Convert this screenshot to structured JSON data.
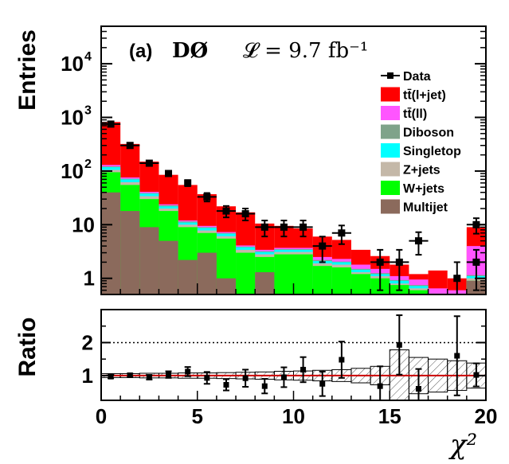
{
  "chart_data": {
    "type": "bar",
    "stacked": true,
    "panel_label": "(a)",
    "experiment": "DØ",
    "luminosity_text": "𝓛 = 9.7 fb⁻¹",
    "ylabel": "Entries",
    "xlabel": "χ²",
    "ratio_ylabel": "Ratio",
    "log_y": true,
    "xlim": [
      0,
      20
    ],
    "ylim": [
      0.5,
      50000
    ],
    "ratio_ylim": [
      0.25,
      3.0
    ],
    "bin_edges": [
      0,
      1,
      2,
      3,
      4,
      5,
      6,
      7,
      8,
      9,
      10,
      11,
      12,
      13,
      14,
      15,
      16,
      17,
      18,
      19,
      20
    ],
    "xticks": [
      "0",
      "5",
      "10",
      "15",
      "20"
    ],
    "yticks_main": [
      {
        "value": 1,
        "label": "1"
      },
      {
        "value": 10,
        "label": "10"
      },
      {
        "value": 100,
        "label": "10",
        "exp": "2"
      },
      {
        "value": 1000,
        "label": "10",
        "exp": "3"
      },
      {
        "value": 10000,
        "label": "10",
        "exp": "4"
      }
    ],
    "yticks_ratio": [
      {
        "value": 1,
        "label": "1"
      },
      {
        "value": 2,
        "label": "2"
      }
    ],
    "legend_position": "top-right",
    "legend": [
      {
        "name": "Data",
        "type": "marker",
        "color": "#000000"
      },
      {
        "name": "tt̄(l+jet)",
        "color": "#ff0000"
      },
      {
        "name": "tt̄(ll)",
        "color": "#ff55ff"
      },
      {
        "name": "Diboson",
        "color": "#7fa38a"
      },
      {
        "name": "Singletop",
        "color": "#00ffff"
      },
      {
        "name": "Z+jets",
        "color": "#c4b8a8"
      },
      {
        "name": "W+jets",
        "color": "#00ff00"
      },
      {
        "name": "Multijet",
        "color": "#8b6a5c"
      }
    ],
    "cumulative_stack": [
      {
        "name": "Multijet",
        "color": "#8b6a5c",
        "values": [
          40,
          18,
          9,
          5,
          2.2,
          3,
          1,
          0.3,
          1.3,
          0.3,
          0.3,
          0.3,
          0.3,
          0.3,
          0.3,
          0.3,
          0.3,
          0.3,
          0.3,
          0.9
        ]
      },
      {
        "name": "W+jets",
        "color": "#00ff00",
        "values": [
          95,
          55,
          30,
          18,
          9,
          7,
          5.5,
          3,
          2.5,
          2.8,
          2.8,
          1.7,
          1.6,
          1.2,
          1.0,
          0.75,
          0.6,
          0.4,
          0.4,
          0.9
        ]
      },
      {
        "name": "Z+jets",
        "color": "#c4b8a8",
        "values": [
          105,
          62,
          34,
          20,
          10,
          7.8,
          6.1,
          3.4,
          2.8,
          3.1,
          3.1,
          1.9,
          1.8,
          1.3,
          1.1,
          0.8,
          0.65,
          0.45,
          0.45,
          1.0
        ]
      },
      {
        "name": "Singletop",
        "color": "#00ffff",
        "values": [
          118,
          70,
          38,
          22,
          11,
          8.7,
          6.8,
          3.8,
          3.1,
          3.4,
          3.4,
          2.1,
          2.0,
          1.45,
          1.2,
          0.9,
          0.72,
          0.5,
          0.5,
          1.1
        ]
      },
      {
        "name": "Diboson",
        "color": "#7fa38a",
        "values": [
          122,
          72,
          39,
          23,
          11.5,
          9,
          7,
          3.9,
          3.2,
          3.5,
          3.5,
          2.2,
          2.05,
          1.5,
          1.25,
          0.93,
          0.75,
          0.52,
          0.52,
          1.15
        ]
      },
      {
        "name": "tt̄(ll)",
        "color": "#ff55ff",
        "values": [
          130,
          76,
          41,
          24,
          12,
          9.5,
          7.3,
          4.1,
          3.4,
          3.7,
          3.7,
          2.5,
          2.3,
          1.8,
          1.5,
          1.1,
          0.95,
          0.65,
          0.6,
          4
        ]
      },
      {
        "name": "tt̄(l+jet)",
        "color": "#ff0000",
        "values": [
          820,
          320,
          150,
          85,
          55,
          37,
          22,
          17,
          10.5,
          9.5,
          8.5,
          6,
          5.2,
          3.4,
          2.6,
          1.8,
          1.2,
          1.4,
          1.0,
          9
        ]
      }
    ],
    "data_points": [
      750,
      300,
      140,
      90,
      60,
      33,
      18,
      16,
      9,
      9,
      9,
      4,
      7,
      2,
      2,
      5,
      1,
      2,
      10
    ],
    "data_points_bins": [
      0,
      1,
      2,
      3,
      4,
      5,
      6,
      7,
      8,
      9,
      10,
      11,
      12,
      14,
      15,
      16,
      18,
      19,
      19
    ],
    "data_x_error_bins": [
      1,
      1,
      1,
      0,
      0,
      1,
      1,
      1,
      1,
      1,
      1,
      1,
      1,
      1,
      1,
      1,
      0,
      1,
      1
    ],
    "data_errors_rel": [
      0.04,
      0.06,
      0.09,
      0.1,
      0.13,
      0.18,
      0.24,
      0.25,
      0.33,
      0.33,
      0.33,
      0.5,
      0.38,
      0.7,
      0.7,
      0.45,
      1.0,
      0.7,
      0.32
    ],
    "ratio": {
      "x_centers": [
        0.5,
        1.5,
        2.5,
        3.5,
        4.5,
        5.5,
        6.5,
        7.5,
        8.5,
        9.5,
        10.5,
        11.5,
        12.5,
        14.5,
        15.5,
        16.5,
        18.5,
        19.5
      ],
      "values": [
        0.97,
        1.01,
        0.95,
        1.03,
        1.12,
        0.93,
        0.72,
        0.92,
        0.68,
        0.95,
        1.18,
        0.75,
        1.48,
        0.68,
        1.93,
        0.6,
        1.6,
        1.02
      ],
      "errors": [
        0.05,
        0.05,
        0.07,
        0.1,
        0.14,
        0.18,
        0.17,
        0.26,
        0.22,
        0.3,
        0.38,
        0.37,
        0.55,
        0.6,
        0.9,
        0.6,
        1.2,
        0.35
      ],
      "band_halfwidth": [
        0.06,
        0.06,
        0.07,
        0.07,
        0.08,
        0.08,
        0.09,
        0.1,
        0.11,
        0.13,
        0.14,
        0.16,
        0.18,
        0.22,
        0.28,
        0.78,
        0.55,
        0.5,
        0.45,
        0.38
      ],
      "reference_lines": [
        1,
        2
      ]
    }
  }
}
